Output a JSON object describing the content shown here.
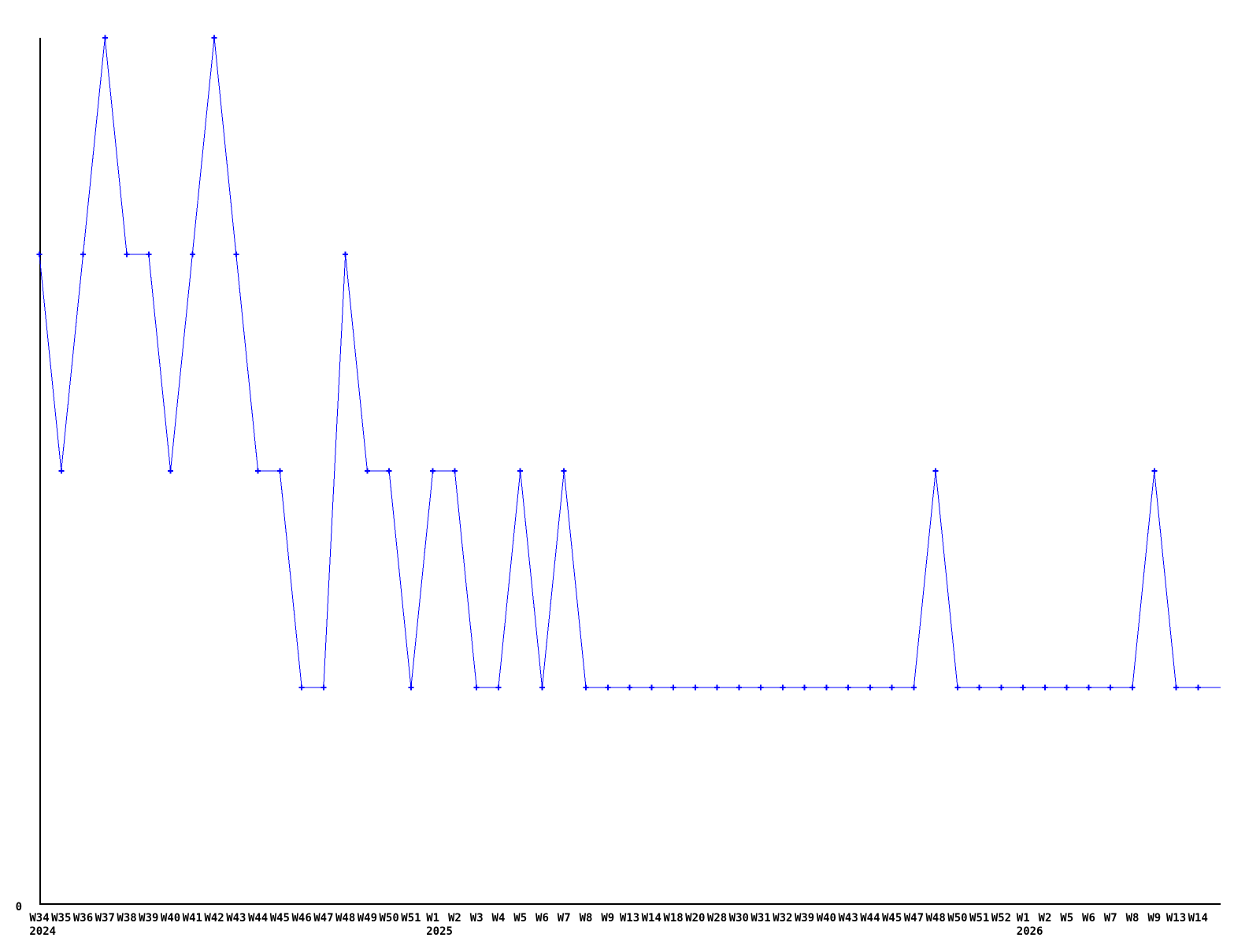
{
  "chart_data": {
    "type": "line",
    "title": "",
    "legend": false,
    "grid": false,
    "background": "#ffffff",
    "axis_color": "#000000",
    "series_color": "#0000ff",
    "marker": "plus",
    "y_axis": {
      "origin_label": "0",
      "ylim": [
        0,
        4.4
      ]
    },
    "x_tick_labels": [
      "W34",
      "W35",
      "W36",
      "W37",
      "W38",
      "W39",
      "W40",
      "W41",
      "W42",
      "W43",
      "W44",
      "W45",
      "W46",
      "W47",
      "W48",
      "W49",
      "W50",
      "W51",
      "W1",
      "W2",
      "W3",
      "W4",
      "W5",
      "W6",
      "W7",
      "W8",
      "W9",
      "W13",
      "W14",
      "W18",
      "W20",
      "W28",
      "W30",
      "W31",
      "W32",
      "W39",
      "W40",
      "W43",
      "W44",
      "W45",
      "W47",
      "W48",
      "W50",
      "W51",
      "W52",
      "W1",
      "W2",
      "W5",
      "W6",
      "W7",
      "W8",
      "W9",
      "W13",
      "W14"
    ],
    "year_labels": [
      {
        "at_tick_index": 0,
        "label": "2024"
      },
      {
        "at_tick_index": 18,
        "label": "2025"
      },
      {
        "at_tick_index": 45,
        "label": "2026"
      }
    ],
    "values": [
      3,
      2,
      3,
      4,
      3,
      3,
      2,
      3,
      4,
      3,
      2,
      2,
      1,
      1,
      3,
      2,
      2,
      1,
      2,
      2,
      1,
      1,
      2,
      1,
      2,
      1,
      1,
      1,
      1,
      1,
      1,
      1,
      1,
      1,
      1,
      1,
      1,
      1,
      1,
      1,
      1,
      2,
      1,
      1,
      1,
      1,
      1,
      1,
      1,
      1,
      1,
      2,
      1,
      1
    ],
    "trailing_segment_value": 1
  }
}
